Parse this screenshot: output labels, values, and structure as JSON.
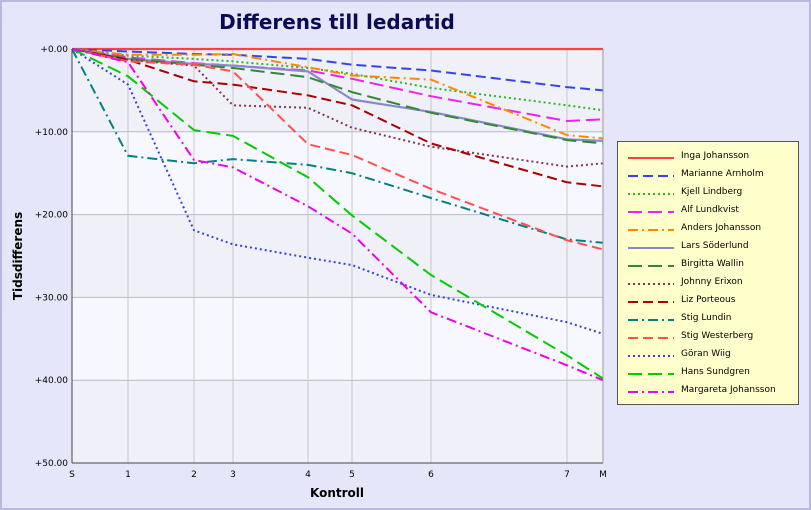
{
  "chart_data": {
    "type": "line",
    "title": "Differens till ledartid",
    "xlabel": "Kontroll",
    "ylabel": "Tidsdifferens",
    "x": [
      "S",
      "1",
      "2",
      "3",
      "4",
      "5",
      "6",
      "7",
      "M"
    ],
    "x_positions": [
      0,
      1,
      2,
      3,
      4,
      5,
      6,
      7,
      8
    ],
    "y_ticks": [
      "+0.00",
      "+10.00",
      "+20.00",
      "+30.00",
      "+40.00",
      "+50.00"
    ],
    "y_tick_values": [
      0,
      10,
      20,
      30,
      40,
      50
    ],
    "ylim": [
      0,
      50
    ],
    "y_inverted": true,
    "grid": true,
    "legend_position": "right",
    "series": [
      {
        "name": "Inga Johansson",
        "color": "#ff4040",
        "dash": "solid",
        "values": [
          0,
          0,
          0,
          0,
          0,
          0,
          0,
          0,
          0
        ]
      },
      {
        "name": "Marianne Arnholm",
        "color": "#3344ee",
        "dash": "dash",
        "values": [
          0,
          0.3,
          0.6,
          0.7,
          1.2,
          1.9,
          2.6,
          4.6,
          5.0
        ]
      },
      {
        "name": "Kjell Lindberg",
        "color": "#22bb22",
        "dash": "dot",
        "values": [
          0,
          0.8,
          1.2,
          1.5,
          2.3,
          3.0,
          4.7,
          6.8,
          7.4
        ]
      },
      {
        "name": "Alf Lundkvist",
        "color": "#ee22ee",
        "dash": "longdash",
        "values": [
          0,
          1.0,
          1.7,
          2.0,
          2.6,
          3.6,
          5.7,
          8.7,
          8.5
        ]
      },
      {
        "name": "Anders Johansson",
        "color": "#ff8800",
        "dash": "dashdot",
        "values": [
          0,
          0.7,
          0.7,
          0.6,
          2.2,
          3.2,
          3.7,
          10.4,
          10.8
        ]
      },
      {
        "name": "Lars Söderlund",
        "color": "#8888cc",
        "dash": "solid",
        "values": [
          0,
          1.2,
          1.8,
          2.0,
          2.7,
          6.1,
          7.6,
          10.9,
          11.1
        ]
      },
      {
        "name": "Birgitta Wallin",
        "color": "#338833",
        "dash": "longdash",
        "values": [
          0,
          1.2,
          1.9,
          2.3,
          3.4,
          5.2,
          7.7,
          11.0,
          11.4
        ]
      },
      {
        "name": "Johnny Erixon",
        "color": "#883355",
        "dash": "dot",
        "values": [
          0,
          1.3,
          2.0,
          6.8,
          7.1,
          9.5,
          11.8,
          14.2,
          13.8
        ]
      },
      {
        "name": "Liz Porteous",
        "color": "#aa0000",
        "dash": "dash",
        "values": [
          0,
          1.3,
          3.9,
          4.3,
          5.6,
          6.8,
          11.4,
          16.1,
          16.6
        ]
      },
      {
        "name": "Stig Lundin",
        "color": "#008080",
        "dash": "dashdot",
        "values": [
          0,
          12.9,
          13.8,
          13.3,
          14.0,
          15.0,
          18.0,
          23.0,
          23.4
        ]
      },
      {
        "name": "Stig Westerberg",
        "color": "#ff5050",
        "dash": "dash",
        "values": [
          0,
          1.5,
          1.9,
          2.7,
          11.5,
          12.8,
          16.9,
          23.1,
          24.2
        ]
      },
      {
        "name": "Göran Wiig",
        "color": "#3344dd",
        "dash": "dot",
        "values": [
          0,
          4.3,
          21.9,
          23.6,
          25.2,
          26.1,
          29.7,
          33.0,
          34.4
        ]
      },
      {
        "name": "Hans Sundgren",
        "color": "#00cc00",
        "dash": "longdash",
        "values": [
          0,
          3.3,
          9.8,
          10.5,
          15.5,
          20.1,
          27.3,
          37.0,
          39.8
        ]
      },
      {
        "name": "Margareta Johansson",
        "color": "#ee00ee",
        "dash": "dashdot",
        "values": [
          0,
          1.6,
          13.4,
          14.3,
          19.0,
          22.3,
          31.8,
          38.2,
          40.0
        ]
      }
    ]
  }
}
